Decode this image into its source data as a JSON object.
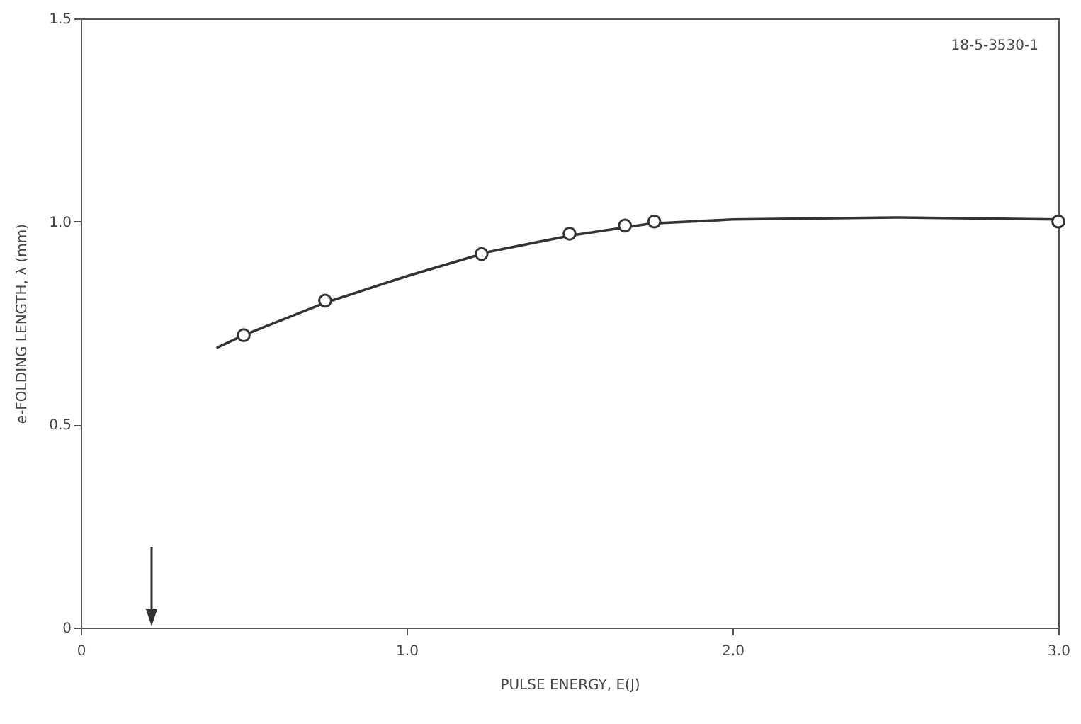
{
  "chart_data": {
    "type": "scatter",
    "xlabel": "PULSE ENERGY, E(J)",
    "ylabel": "e-FOLDING LENGTH, λ (mm)",
    "annotations": [
      "18-5-3530-1"
    ],
    "xlim": [
      0,
      3
    ],
    "ylim": [
      0,
      1.5
    ],
    "xticks": [
      0,
      {
        "value": 1,
        "label": "1.0"
      },
      {
        "value": 2,
        "label": "2.0"
      },
      {
        "value": 3,
        "label": "3.0"
      }
    ],
    "yticks": [
      0,
      0.5,
      {
        "value": 1,
        "label": "1.0"
      },
      1.5
    ],
    "grid": false,
    "series": [
      {
        "type": "line",
        "color": "#333333",
        "marker": "none",
        "line_style": "solid",
        "x": [
          0.42,
          0.5,
          0.75,
          1.0,
          1.25,
          1.5,
          1.75,
          2.0,
          2.5,
          3.0
        ],
        "values": [
          0.69,
          0.72,
          0.8,
          0.865,
          0.925,
          0.965,
          0.995,
          1.005,
          1.01,
          1.005
        ]
      },
      {
        "color": "#333333",
        "marker": "circle",
        "x": [
          0.5,
          0.75,
          1.23,
          1.5,
          1.67,
          1.76,
          3.0
        ],
        "values": [
          0.72,
          0.805,
          0.92,
          0.97,
          0.99,
          1.0,
          1.0
        ]
      }
    ]
  }
}
